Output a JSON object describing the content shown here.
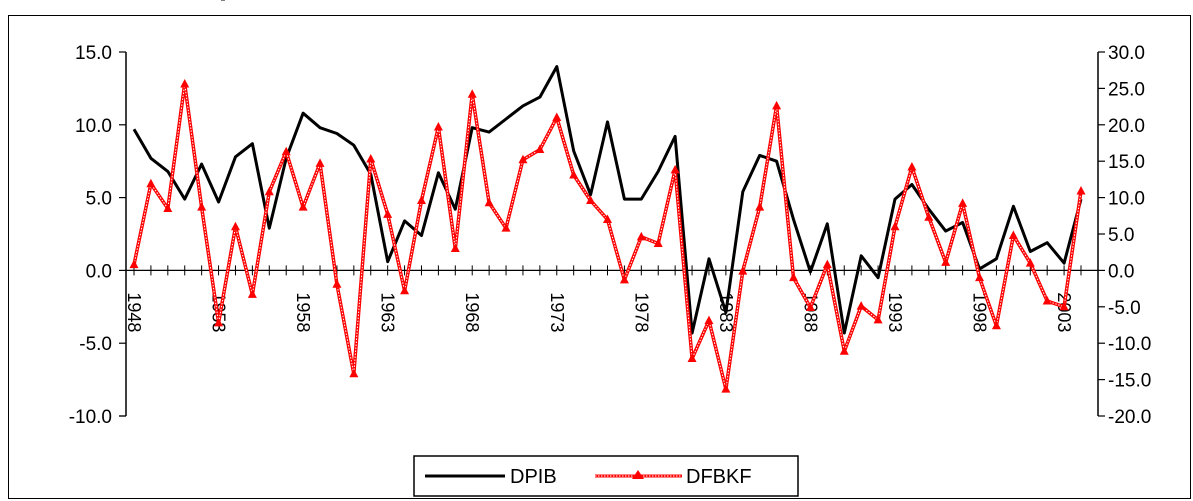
{
  "chart_data": {
    "type": "line",
    "years": [
      1948,
      1949,
      1950,
      1951,
      1952,
      1953,
      1954,
      1955,
      1956,
      1957,
      1958,
      1959,
      1960,
      1961,
      1962,
      1963,
      1964,
      1965,
      1966,
      1967,
      1968,
      1969,
      1970,
      1971,
      1972,
      1973,
      1974,
      1975,
      1976,
      1977,
      1978,
      1979,
      1980,
      1981,
      1982,
      1983,
      1984,
      1985,
      1986,
      1987,
      1988,
      1989,
      1990,
      1991,
      1992,
      1993,
      1994,
      1995,
      1996,
      1997,
      1998,
      1999,
      2000,
      2001,
      2002,
      2003,
      2004
    ],
    "x_tick_labels": [
      "1948",
      "1953",
      "1958",
      "1963",
      "1968",
      "1973",
      "1978",
      "1983",
      "1988",
      "1993",
      "1998",
      "2003"
    ],
    "left_axis": {
      "ticks": [
        "-10.0",
        "-5.0",
        "0.0",
        "5.0",
        "10.0",
        "15.0"
      ],
      "range": [
        -10,
        15
      ]
    },
    "right_axis": {
      "ticks": [
        "-20.0",
        "-15.0",
        "-10.0",
        "-5.0",
        "0.0",
        "5.0",
        "10.0",
        "15.0",
        "20.0",
        "25.0",
        "30.0"
      ],
      "range": [
        -20,
        30
      ]
    },
    "series": [
      {
        "name": "DPIB",
        "axis": "left",
        "color": "#000000",
        "values": [
          9.7,
          7.7,
          6.8,
          4.9,
          7.3,
          4.7,
          7.8,
          8.7,
          2.9,
          7.7,
          10.8,
          9.8,
          9.4,
          8.6,
          6.6,
          0.6,
          3.4,
          2.4,
          6.7,
          4.2,
          9.8,
          9.5,
          10.4,
          11.3,
          11.9,
          14.0,
          8.2,
          5.2,
          10.2,
          4.9,
          4.9,
          6.8,
          9.2,
          -4.3,
          0.8,
          -2.9,
          5.4,
          7.9,
          7.5,
          3.5,
          -0.1,
          3.2,
          -4.3,
          1.0,
          -0.5,
          4.9,
          5.9,
          4.2,
          2.7,
          3.3,
          0.1,
          0.8,
          4.4,
          1.3,
          1.9,
          0.5,
          4.9
        ]
      },
      {
        "name": "DFBKF",
        "axis": "right",
        "color": "#ff0000",
        "values": [
          0.8,
          11.9,
          8.5,
          25.6,
          8.7,
          -7.2,
          6.0,
          -3.3,
          10.8,
          16.3,
          8.7,
          14.7,
          -1.9,
          -14.2,
          15.3,
          7.7,
          -2.8,
          9.6,
          19.7,
          3.0,
          24.2,
          9.3,
          5.8,
          15.2,
          16.6,
          21.0,
          13.1,
          9.6,
          7.0,
          -1.3,
          4.6,
          3.7,
          13.8,
          -12.1,
          -6.9,
          -16.3,
          -0.1,
          8.7,
          22.6,
          -1.0,
          -5.1,
          0.8,
          -11.1,
          -4.9,
          -6.8,
          6.0,
          14.2,
          7.3,
          1.1,
          9.2,
          -1.0,
          -7.6,
          4.8,
          1.0,
          -4.2,
          -5.0,
          10.9
        ]
      }
    ]
  }
}
